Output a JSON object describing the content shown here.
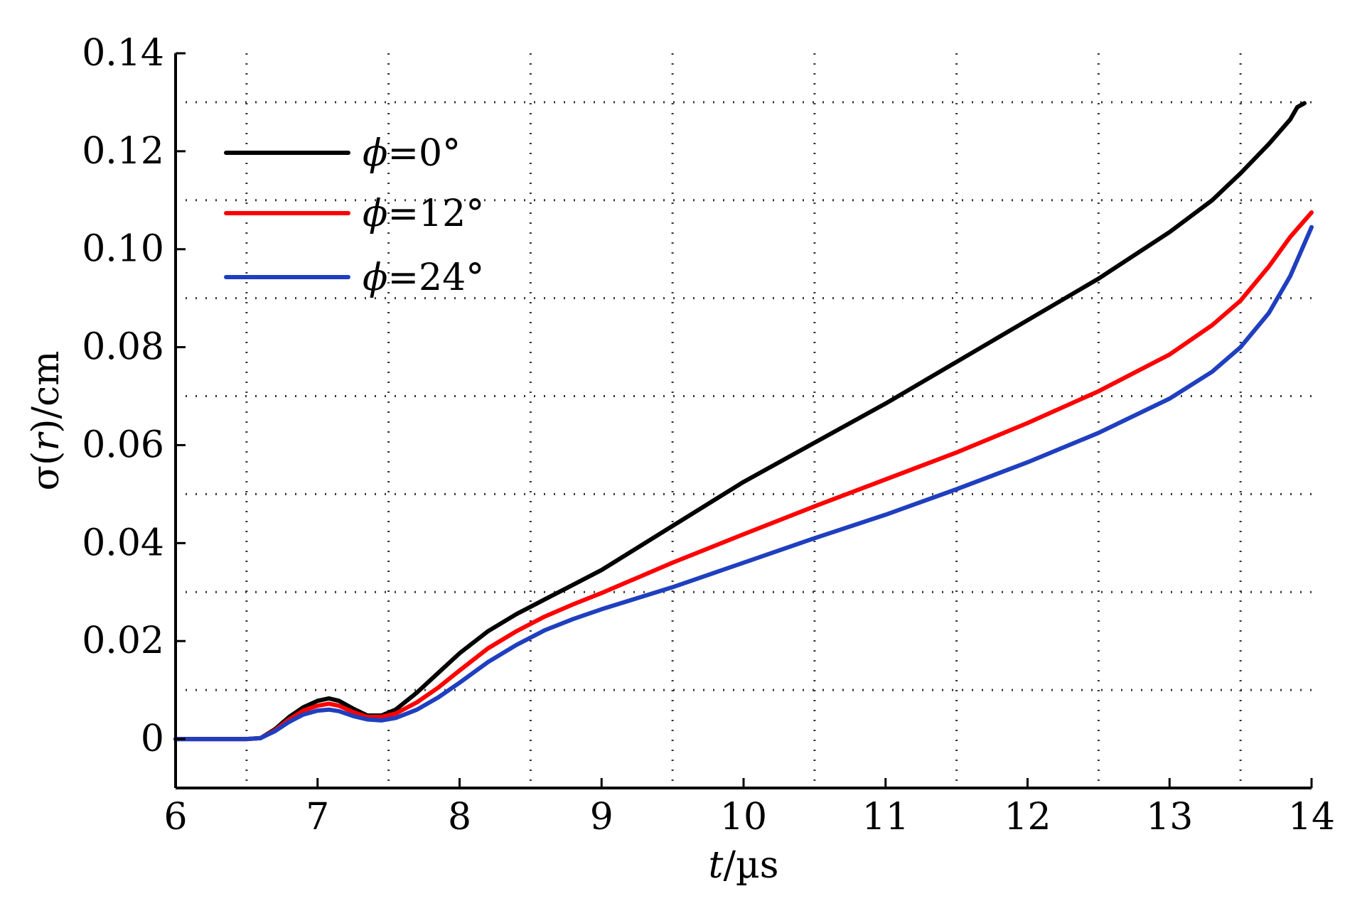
{
  "chart_data": {
    "type": "line",
    "title": "",
    "xlabel": {
      "var": "t",
      "unit": "/µs"
    },
    "ylabel": {
      "var": "σ(",
      "arg": "r",
      "close": ")",
      "unit": "/cm"
    },
    "xlim": [
      6,
      14
    ],
    "ylim": [
      -0.01,
      0.14
    ],
    "x_ticks": [
      6,
      7,
      8,
      9,
      10,
      11,
      12,
      13,
      14
    ],
    "x_tick_labels": [
      "6",
      "7",
      "8",
      "9",
      "10",
      "11",
      "12",
      "13",
      "14"
    ],
    "y_ticks": [
      0,
      0.02,
      0.04,
      0.06,
      0.08,
      0.1,
      0.12,
      0.14
    ],
    "y_tick_labels": [
      "0",
      "0.02",
      "0.04",
      "0.06",
      "0.08",
      "0.10",
      "0.12",
      "0.14"
    ],
    "grid": {
      "style": "dotted",
      "x": [
        6.5,
        7.5,
        8.5,
        9.5,
        10.5,
        11.5,
        12.5,
        13.5
      ],
      "y": [
        -0.01,
        0.01,
        0.03,
        0.05,
        0.07,
        0.09,
        0.11,
        0.13
      ]
    },
    "legend_position": "top-left",
    "series": [
      {
        "name": "ϕ=0°",
        "legend": {
          "symbol": "ϕ",
          "text": "=0°"
        },
        "color": "#000000",
        "x": [
          6.0,
          6.5,
          6.6,
          6.7,
          6.8,
          6.9,
          7.0,
          7.08,
          7.15,
          7.25,
          7.35,
          7.45,
          7.55,
          7.7,
          7.85,
          8.0,
          8.2,
          8.4,
          8.6,
          8.8,
          9.0,
          9.5,
          10.0,
          10.5,
          11.0,
          11.5,
          12.0,
          12.5,
          13.0,
          13.3,
          13.5,
          13.7,
          13.85,
          13.9,
          13.95
        ],
        "y": [
          0.0,
          0.0,
          0.0002,
          0.002,
          0.0045,
          0.0065,
          0.0078,
          0.0083,
          0.0078,
          0.0062,
          0.0048,
          0.0048,
          0.006,
          0.0095,
          0.0135,
          0.0175,
          0.022,
          0.0255,
          0.0285,
          0.0315,
          0.0345,
          0.0435,
          0.0525,
          0.0605,
          0.0685,
          0.077,
          0.0855,
          0.094,
          0.1035,
          0.11,
          0.1155,
          0.1215,
          0.1265,
          0.129,
          0.1298
        ]
      },
      {
        "name": "ϕ=12°",
        "legend": {
          "symbol": "ϕ",
          "text": "=12°"
        },
        "color": "#ff0000",
        "x": [
          6.0,
          6.5,
          6.6,
          6.7,
          6.8,
          6.9,
          7.0,
          7.08,
          7.15,
          7.25,
          7.35,
          7.45,
          7.55,
          7.7,
          7.85,
          8.0,
          8.2,
          8.4,
          8.6,
          8.8,
          9.0,
          9.5,
          10.0,
          10.5,
          11.0,
          11.5,
          12.0,
          12.5,
          13.0,
          13.3,
          13.5,
          13.7,
          13.85,
          14.0
        ],
        "y": [
          0.0,
          0.0,
          0.0002,
          0.0018,
          0.004,
          0.0058,
          0.0068,
          0.0072,
          0.0068,
          0.0055,
          0.0045,
          0.0045,
          0.0052,
          0.0075,
          0.0105,
          0.014,
          0.0185,
          0.022,
          0.025,
          0.0275,
          0.0298,
          0.036,
          0.0418,
          0.0475,
          0.053,
          0.0585,
          0.0645,
          0.071,
          0.0785,
          0.0845,
          0.0895,
          0.0965,
          0.1025,
          0.1075
        ]
      },
      {
        "name": "ϕ=24°",
        "legend": {
          "symbol": "ϕ",
          "text": "=24°"
        },
        "color": "#1f3fbf",
        "x": [
          6.0,
          6.5,
          6.6,
          6.7,
          6.8,
          6.9,
          7.0,
          7.08,
          7.15,
          7.25,
          7.35,
          7.45,
          7.55,
          7.7,
          7.85,
          8.0,
          8.2,
          8.4,
          8.6,
          8.8,
          9.0,
          9.5,
          10.0,
          10.5,
          11.0,
          11.5,
          12.0,
          12.5,
          13.0,
          13.3,
          13.5,
          13.7,
          13.85,
          14.0
        ],
        "y": [
          0.0,
          0.0,
          0.0002,
          0.0016,
          0.0035,
          0.005,
          0.0058,
          0.006,
          0.0057,
          0.0047,
          0.004,
          0.0038,
          0.0043,
          0.006,
          0.0085,
          0.0115,
          0.0157,
          0.0192,
          0.0222,
          0.0245,
          0.0265,
          0.031,
          0.036,
          0.041,
          0.0458,
          0.051,
          0.0565,
          0.0625,
          0.0695,
          0.075,
          0.08,
          0.087,
          0.0945,
          0.1045
        ]
      }
    ]
  }
}
